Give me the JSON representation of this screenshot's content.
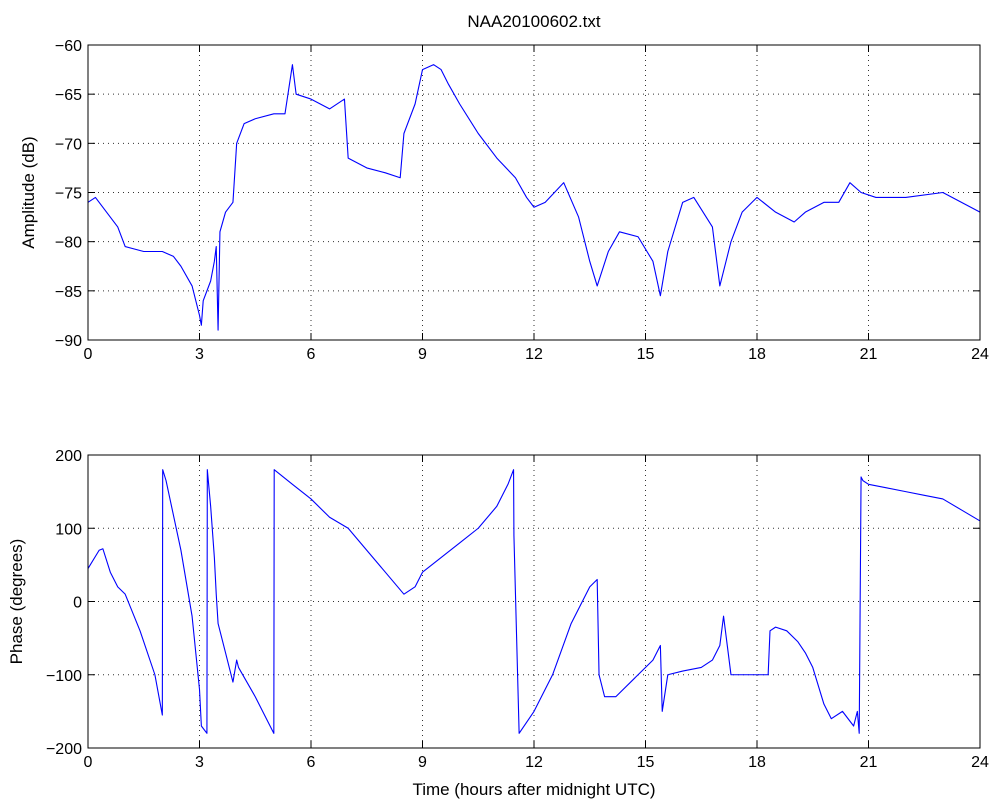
{
  "chart_data": [
    {
      "type": "line",
      "title": "NAA20100602.txt",
      "xlabel": "",
      "ylabel": "Amplitude (dB)",
      "xlim": [
        0,
        24
      ],
      "ylim": [
        -90,
        -60
      ],
      "xticks": [
        0,
        3,
        6,
        9,
        12,
        15,
        18,
        21,
        24
      ],
      "yticks": [
        -90,
        -85,
        -80,
        -75,
        -70,
        -65,
        -60
      ],
      "grid": true,
      "color": "#0000ff",
      "series": [
        {
          "x": [
            0,
            0.2,
            0.5,
            0.8,
            1.0,
            1.5,
            2.0,
            2.3,
            2.5,
            2.8,
            3.0,
            3.05,
            3.1,
            3.3,
            3.4,
            3.45,
            3.5,
            3.55,
            3.7,
            3.9,
            4.0,
            4.2,
            4.5,
            5.0,
            5.3,
            5.5,
            5.6,
            6.0,
            6.5,
            6.9,
            7.0,
            7.5,
            8.0,
            8.4,
            8.5,
            8.8,
            9.0,
            9.3,
            9.5,
            9.7,
            10.0,
            10.5,
            11.0,
            11.5,
            11.8,
            12.0,
            12.3,
            12.8,
            13.2,
            13.5,
            13.7,
            14.0,
            14.3,
            14.8,
            15.2,
            15.4,
            15.6,
            16.0,
            16.3,
            16.8,
            17.0,
            17.3,
            17.6,
            18.0,
            18.5,
            19.0,
            19.3,
            19.8,
            20.2,
            20.5,
            20.8,
            21.2,
            22.0,
            23.0,
            24.0
          ],
          "values": [
            -76,
            -75.5,
            -77,
            -78.5,
            -80.5,
            -81,
            -81,
            -81.5,
            -82.5,
            -84.5,
            -87.5,
            -88.5,
            -86,
            -84,
            -82,
            -80.5,
            -89,
            -79,
            -77,
            -76,
            -70,
            -68,
            -67.5,
            -67,
            -67,
            -62,
            -65,
            -65.5,
            -66.5,
            -65.5,
            -71.5,
            -72.5,
            -73,
            -73.5,
            -69,
            -66,
            -62.5,
            -62,
            -62.5,
            -64,
            -66,
            -69,
            -71.5,
            -73.5,
            -75.5,
            -76.5,
            -76,
            -74,
            -77.5,
            -82,
            -84.5,
            -81,
            -79,
            -79.5,
            -82,
            -85.5,
            -81,
            -76,
            -75.5,
            -78.5,
            -84.5,
            -80,
            -77,
            -75.5,
            -77,
            -78,
            -77,
            -76,
            -76,
            -74,
            -75,
            -75.5,
            -75.5,
            -75,
            -77
          ]
        }
      ]
    },
    {
      "type": "line",
      "title": "",
      "xlabel": "Time (hours after midnight UTC)",
      "ylabel": "Phase (degrees)",
      "xlim": [
        0,
        24
      ],
      "ylim": [
        -200,
        200
      ],
      "xticks": [
        0,
        3,
        6,
        9,
        12,
        15,
        18,
        21,
        24
      ],
      "yticks": [
        -200,
        -100,
        0,
        100,
        200
      ],
      "grid": true,
      "color": "#0000ff",
      "series": [
        {
          "x": [
            0,
            0.3,
            0.4,
            0.6,
            0.8,
            1.0,
            1.4,
            1.8,
            2.0,
            2.01,
            2.1,
            2.5,
            2.8,
            3.0,
            3.05,
            3.2,
            3.21,
            3.3,
            3.4,
            3.45,
            3.5,
            3.7,
            3.9,
            4.0,
            4.05,
            4.5,
            4.8,
            5.0,
            5.01,
            5.5,
            6.0,
            6.5,
            7.0,
            7.5,
            8.0,
            8.5,
            8.8,
            9.0,
            9.5,
            10.0,
            10.5,
            11.0,
            11.3,
            11.45,
            11.46,
            11.6,
            12.0,
            12.5,
            13.0,
            13.5,
            13.7,
            13.75,
            13.9,
            14.2,
            14.8,
            15.2,
            15.4,
            15.45,
            15.6,
            16.0,
            16.5,
            16.8,
            17.0,
            17.1,
            17.3,
            17.6,
            18.0,
            18.3,
            18.35,
            18.5,
            18.8,
            19.1,
            19.3,
            19.5,
            19.8,
            20.0,
            20.3,
            20.6,
            20.7,
            20.75,
            20.8,
            20.85,
            21.0,
            21.5,
            22.0,
            22.5,
            23.0,
            23.5,
            24.0
          ],
          "values": [
            45,
            70,
            72,
            40,
            20,
            10,
            -40,
            -100,
            -155,
            180,
            165,
            70,
            -20,
            -120,
            -170,
            -180,
            180,
            130,
            60,
            10,
            -30,
            -70,
            -110,
            -80,
            -90,
            -130,
            -160,
            -180,
            180,
            160,
            140,
            115,
            100,
            70,
            40,
            10,
            20,
            40,
            60,
            80,
            100,
            130,
            160,
            180,
            90,
            -180,
            -150,
            -100,
            -30,
            20,
            30,
            -100,
            -130,
            -130,
            -100,
            -80,
            -60,
            -150,
            -100,
            -95,
            -90,
            -80,
            -60,
            -20,
            -100,
            -100,
            -100,
            -100,
            -40,
            -35,
            -40,
            -55,
            -70,
            -90,
            -140,
            -160,
            -150,
            -170,
            -150,
            -180,
            170,
            165,
            160,
            155,
            150,
            145,
            140,
            125,
            110
          ]
        }
      ]
    }
  ]
}
